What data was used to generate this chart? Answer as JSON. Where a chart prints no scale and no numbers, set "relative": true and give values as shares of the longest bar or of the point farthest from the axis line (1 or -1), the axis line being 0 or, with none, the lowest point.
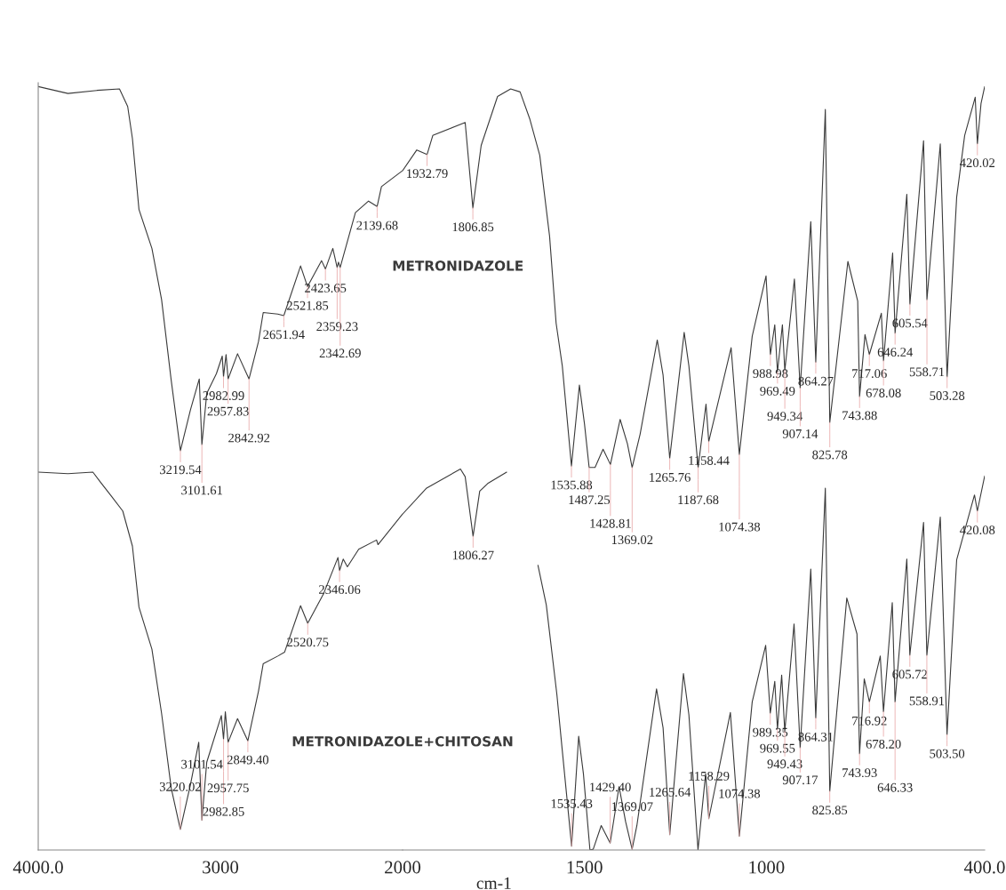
{
  "chart_data": [
    {
      "type": "line",
      "relative": true,
      "tick_labels": "x",
      "legend": false,
      "grid": false,
      "xlim": [
        4000,
        2000
      ],
      "xticks": [
        {
          "value": 4000,
          "label": "4000.0"
        },
        3000,
        2000
      ],
      "series": [
        {
          "color": "#3a3a3a",
          "x": [
            4000,
            3837,
            3678,
            3554,
            3509,
            3483,
            3447,
            3376,
            3323,
            3270,
            3219.54,
            3164,
            3116,
            3101.61,
            3075,
            3022,
            2990,
            2982.99,
            2969,
            2957.83,
            2906,
            2842.92,
            2791,
            2765,
            2685,
            2651.94,
            2560,
            2521.85,
            2445,
            2423.65,
            2383,
            2359.23,
            2352,
            2342.69,
            2259,
            2187,
            2139.68,
            2116,
            2000
          ],
          "values": [
            1.0,
            0.991,
            0.995,
            0.997,
            0.974,
            0.932,
            0.839,
            0.788,
            0.721,
            0.615,
            0.523,
            0.577,
            0.617,
            0.531,
            0.598,
            0.624,
            0.647,
            0.62,
            0.649,
            0.617,
            0.65,
            0.617,
            0.666,
            0.704,
            0.702,
            0.7,
            0.765,
            0.738,
            0.772,
            0.761,
            0.788,
            0.763,
            0.77,
            0.763,
            0.835,
            0.85,
            0.843,
            0.869,
            0.89
          ]
        },
        {
          "name": "METRONIDAZOLE+CHITOSAN",
          "color": "#3a3a3a",
          "x": [
            4000,
            3837,
            3700,
            3659,
            3600,
            3536,
            3483,
            3447,
            3376,
            3323,
            3270,
            3220.02,
            3164,
            3119,
            3101.54,
            3075,
            2995,
            2982.85,
            2973,
            2957.75,
            2906,
            2849.4,
            2791,
            2765,
            2685,
            2648,
            2560,
            2520.75,
            2435,
            2355,
            2346.06,
            2326,
            2303,
            2241,
            2143,
            2135,
            2000
          ],
          "values": [
            0.495,
            0.493,
            0.495,
            0.482,
            0.464,
            0.444,
            0.398,
            0.318,
            0.263,
            0.179,
            0.081,
            0.027,
            0.086,
            0.141,
            0.039,
            0.115,
            0.176,
            0.145,
            0.181,
            0.141,
            0.172,
            0.143,
            0.208,
            0.244,
            0.254,
            0.259,
            0.32,
            0.297,
            0.335,
            0.383,
            0.366,
            0.381,
            0.371,
            0.394,
            0.406,
            0.4,
            0.44
          ]
        }
      ],
      "annotations": [
        {
          "text": "3219.54",
          "x": 3219.54,
          "y": 0.523
        },
        {
          "text": "3101.61",
          "x": 3101.61,
          "y": 0.531
        },
        {
          "text": "2982.99",
          "x": 2982.99,
          "y": 0.62
        },
        {
          "text": "2957.83",
          "x": 2957.83,
          "y": 0.617
        },
        {
          "text": "2842.92",
          "x": 2842.92,
          "y": 0.617
        },
        {
          "text": "2651.94",
          "x": 2651.94,
          "y": 0.7
        },
        {
          "text": "2521.85",
          "x": 2521.85,
          "y": 0.738
        },
        {
          "text": "2423.65",
          "x": 2423.65,
          "y": 0.761
        },
        {
          "text": "2359.23",
          "x": 2359.23,
          "y": 0.763
        },
        {
          "text": "2342.69",
          "x": 2342.69,
          "y": 0.763
        },
        {
          "text": "2139.68",
          "x": 2139.68,
          "y": 0.843
        },
        {
          "text": "3220.02",
          "x": 3220.02,
          "y": 0.027
        },
        {
          "text": "3101.54",
          "x": 3101.54,
          "y": 0.039
        },
        {
          "text": "2982.85",
          "x": 2982.85,
          "y": 0.145
        },
        {
          "text": "2957.75",
          "x": 2957.75,
          "y": 0.141
        },
        {
          "text": "2849.40",
          "x": 2849.4,
          "y": 0.143
        },
        {
          "text": "2520.75",
          "x": 2520.75,
          "y": 0.297
        },
        {
          "text": "2346.06",
          "x": 2346.06,
          "y": 0.366
        }
      ]
    },
    {
      "type": "line",
      "relative": true,
      "xlabel": "cm-1",
      "tick_labels": "x",
      "legend": false,
      "grid": false,
      "xlim": [
        2000,
        400
      ],
      "xticks": [
        1500,
        1000,
        {
          "value": 400,
          "label": "400.0"
        }
      ],
      "series": [
        {
          "name": "METRONIDAZOLE",
          "color": "#3a3a3a",
          "x": [
            2000,
            1961,
            1932.79,
            1917,
            1828,
            1806.85,
            1784,
            1739,
            1703,
            1677,
            1650,
            1623,
            1596,
            1578,
            1561,
            1535.88,
            1514,
            1500,
            1487.25,
            1471,
            1449,
            1428.81,
            1402,
            1382,
            1369.02,
            1347,
            1300,
            1284,
            1265.76,
            1226,
            1213,
            1187.68,
            1166,
            1158.44,
            1097,
            1074.38,
            1039,
            1001,
            988.98,
            977,
            969.49,
            956,
            949.34,
            923,
            907.14,
            878,
            864.27,
            838,
            825.78,
            776,
            749,
            743.88,
            729,
            717.06,
            684,
            678.08,
            653,
            646.24,
            614,
            605.54,
            568,
            558.71,
            522,
            503.28,
            477,
            455,
            426,
            420.02,
            410,
            400
          ],
          "values": [
            0.89,
            0.917,
            0.911,
            0.936,
            0.953,
            0.841,
            0.923,
            0.987,
            0.997,
            0.993,
            0.957,
            0.91,
            0.804,
            0.69,
            0.634,
            0.503,
            0.609,
            0.558,
            0.501,
            0.501,
            0.525,
            0.505,
            0.564,
            0.532,
            0.501,
            0.545,
            0.668,
            0.622,
            0.513,
            0.678,
            0.634,
            0.501,
            0.584,
            0.535,
            0.658,
            0.518,
            0.673,
            0.752,
            0.649,
            0.688,
            0.626,
            0.688,
            0.628,
            0.748,
            0.605,
            0.823,
            0.639,
            0.97,
            0.56,
            0.771,
            0.719,
            0.594,
            0.675,
            0.649,
            0.703,
            0.641,
            0.782,
            0.677,
            0.859,
            0.715,
            0.929,
            0.721,
            0.925,
            0.62,
            0.855,
            0.936,
            0.986,
            0.925,
            0.978,
            1.0
          ]
        },
        {
          "color": "#3a3a3a",
          "x": [
            2000,
            1934,
            1841,
            1828,
            1806.27,
            1788,
            1766,
            1714,
            1670,
            1628,
            1605,
            1576,
            1561,
            1535.43,
            1516,
            1503,
            1485,
            1476,
            1454,
            1429.4,
            1405,
            1387,
            1369.07,
            1356,
            1302,
            1284,
            1265.64,
            1228,
            1213,
            1188,
            1167,
            1158.29,
            1099,
            1074.38,
            1039,
            1002,
            989.35,
            977,
            969.55,
            958,
            949.43,
            924,
            907.17,
            878,
            864.31,
            838,
            825.85,
            779,
            751,
            743.93,
            731,
            716.92,
            687,
            678.2,
            654,
            646.33,
            614,
            605.72,
            568,
            558.91,
            522,
            503.5,
            477,
            428,
            420.08,
            400
          ],
          "values": [
            0.44,
            0.474,
            0.499,
            0.489,
            0.411,
            0.47,
            0.48,
            0.495,
            null,
            0.373,
            0.321,
            0.204,
            0.13,
            0.005,
            0.149,
            0.1,
            0.0,
            0.001,
            0.032,
            0.009,
            0.083,
            0.037,
            0.001,
            0.032,
            0.211,
            0.16,
            0.02,
            0.231,
            0.177,
            0.0,
            0.1,
            0.041,
            0.18,
            0.018,
            0.194,
            0.268,
            0.179,
            0.221,
            0.158,
            0.229,
            0.155,
            0.296,
            0.134,
            0.368,
            0.173,
            0.474,
            0.077,
            0.33,
            0.283,
            0.126,
            0.224,
            0.194,
            0.254,
            0.181,
            0.324,
            0.194,
            0.381,
            0.255,
            0.429,
            0.255,
            0.436,
            0.151,
            0.38,
            0.465,
            0.444,
            0.49
          ]
        }
      ],
      "annotations": [
        {
          "text": "1932.79",
          "x": 1932.79,
          "y": 0.911
        },
        {
          "text": "1806.85",
          "x": 1806.85,
          "y": 0.841
        },
        {
          "text": "1535.88",
          "x": 1535.88,
          "y": 0.503
        },
        {
          "text": "1487.25",
          "x": 1487.25,
          "y": 0.501
        },
        {
          "text": "1428.81",
          "x": 1428.81,
          "y": 0.505
        },
        {
          "text": "1369.02",
          "x": 1369.02,
          "y": 0.501
        },
        {
          "text": "1265.76",
          "x": 1265.76,
          "y": 0.513
        },
        {
          "text": "1187.68",
          "x": 1187.68,
          "y": 0.501
        },
        {
          "text": "1158.44",
          "x": 1158.44,
          "y": 0.535
        },
        {
          "text": "1074.38",
          "x": 1074.38,
          "y": 0.518
        },
        {
          "text": "988.98",
          "x": 988.98,
          "y": 0.649
        },
        {
          "text": "969.49",
          "x": 969.49,
          "y": 0.626
        },
        {
          "text": "949.34",
          "x": 949.34,
          "y": 0.628
        },
        {
          "text": "907.14",
          "x": 907.14,
          "y": 0.605
        },
        {
          "text": "864.27",
          "x": 864.27,
          "y": 0.639
        },
        {
          "text": "825.78",
          "x": 825.78,
          "y": 0.56
        },
        {
          "text": "743.88",
          "x": 743.88,
          "y": 0.594
        },
        {
          "text": "717.06",
          "x": 717.06,
          "y": 0.649
        },
        {
          "text": "678.08",
          "x": 678.08,
          "y": 0.641
        },
        {
          "text": "646.24",
          "x": 646.24,
          "y": 0.677
        },
        {
          "text": "605.54",
          "x": 605.54,
          "y": 0.715
        },
        {
          "text": "558.71",
          "x": 558.71,
          "y": 0.721
        },
        {
          "text": "503.28",
          "x": 503.28,
          "y": 0.62
        },
        {
          "text": "420.02",
          "x": 420.02,
          "y": 0.925
        },
        {
          "text": "1806.27",
          "x": 1806.27,
          "y": 0.411
        },
        {
          "text": "1535.43",
          "x": 1535.43,
          "y": 0.005
        },
        {
          "text": "1429.40",
          "x": 1429.4,
          "y": 0.009
        },
        {
          "text": "1369.07",
          "x": 1369.07,
          "y": 0.001
        },
        {
          "text": "1265.64",
          "x": 1265.64,
          "y": 0.02
        },
        {
          "text": "1158.29",
          "x": 1158.29,
          "y": 0.041
        },
        {
          "text": "1074.38",
          "x": 1074.38,
          "y": 0.018
        },
        {
          "text": "989.35",
          "x": 989.35,
          "y": 0.179
        },
        {
          "text": "969.55",
          "x": 969.55,
          "y": 0.158
        },
        {
          "text": "949.43",
          "x": 949.43,
          "y": 0.155
        },
        {
          "text": "907.17",
          "x": 907.17,
          "y": 0.134
        },
        {
          "text": "864.31",
          "x": 864.31,
          "y": 0.173
        },
        {
          "text": "825.85",
          "x": 825.85,
          "y": 0.077
        },
        {
          "text": "743.93",
          "x": 743.93,
          "y": 0.126
        },
        {
          "text": "716.92",
          "x": 716.92,
          "y": 0.194
        },
        {
          "text": "678.20",
          "x": 678.2,
          "y": 0.181
        },
        {
          "text": "646.33",
          "x": 646.33,
          "y": 0.194
        },
        {
          "text": "605.72",
          "x": 605.72,
          "y": 0.255
        },
        {
          "text": "558.91",
          "x": 558.91,
          "y": 0.255
        },
        {
          "text": "503.50",
          "x": 503.5,
          "y": 0.151
        },
        {
          "text": "420.08",
          "x": 420.08,
          "y": 0.444
        }
      ]
    }
  ]
}
